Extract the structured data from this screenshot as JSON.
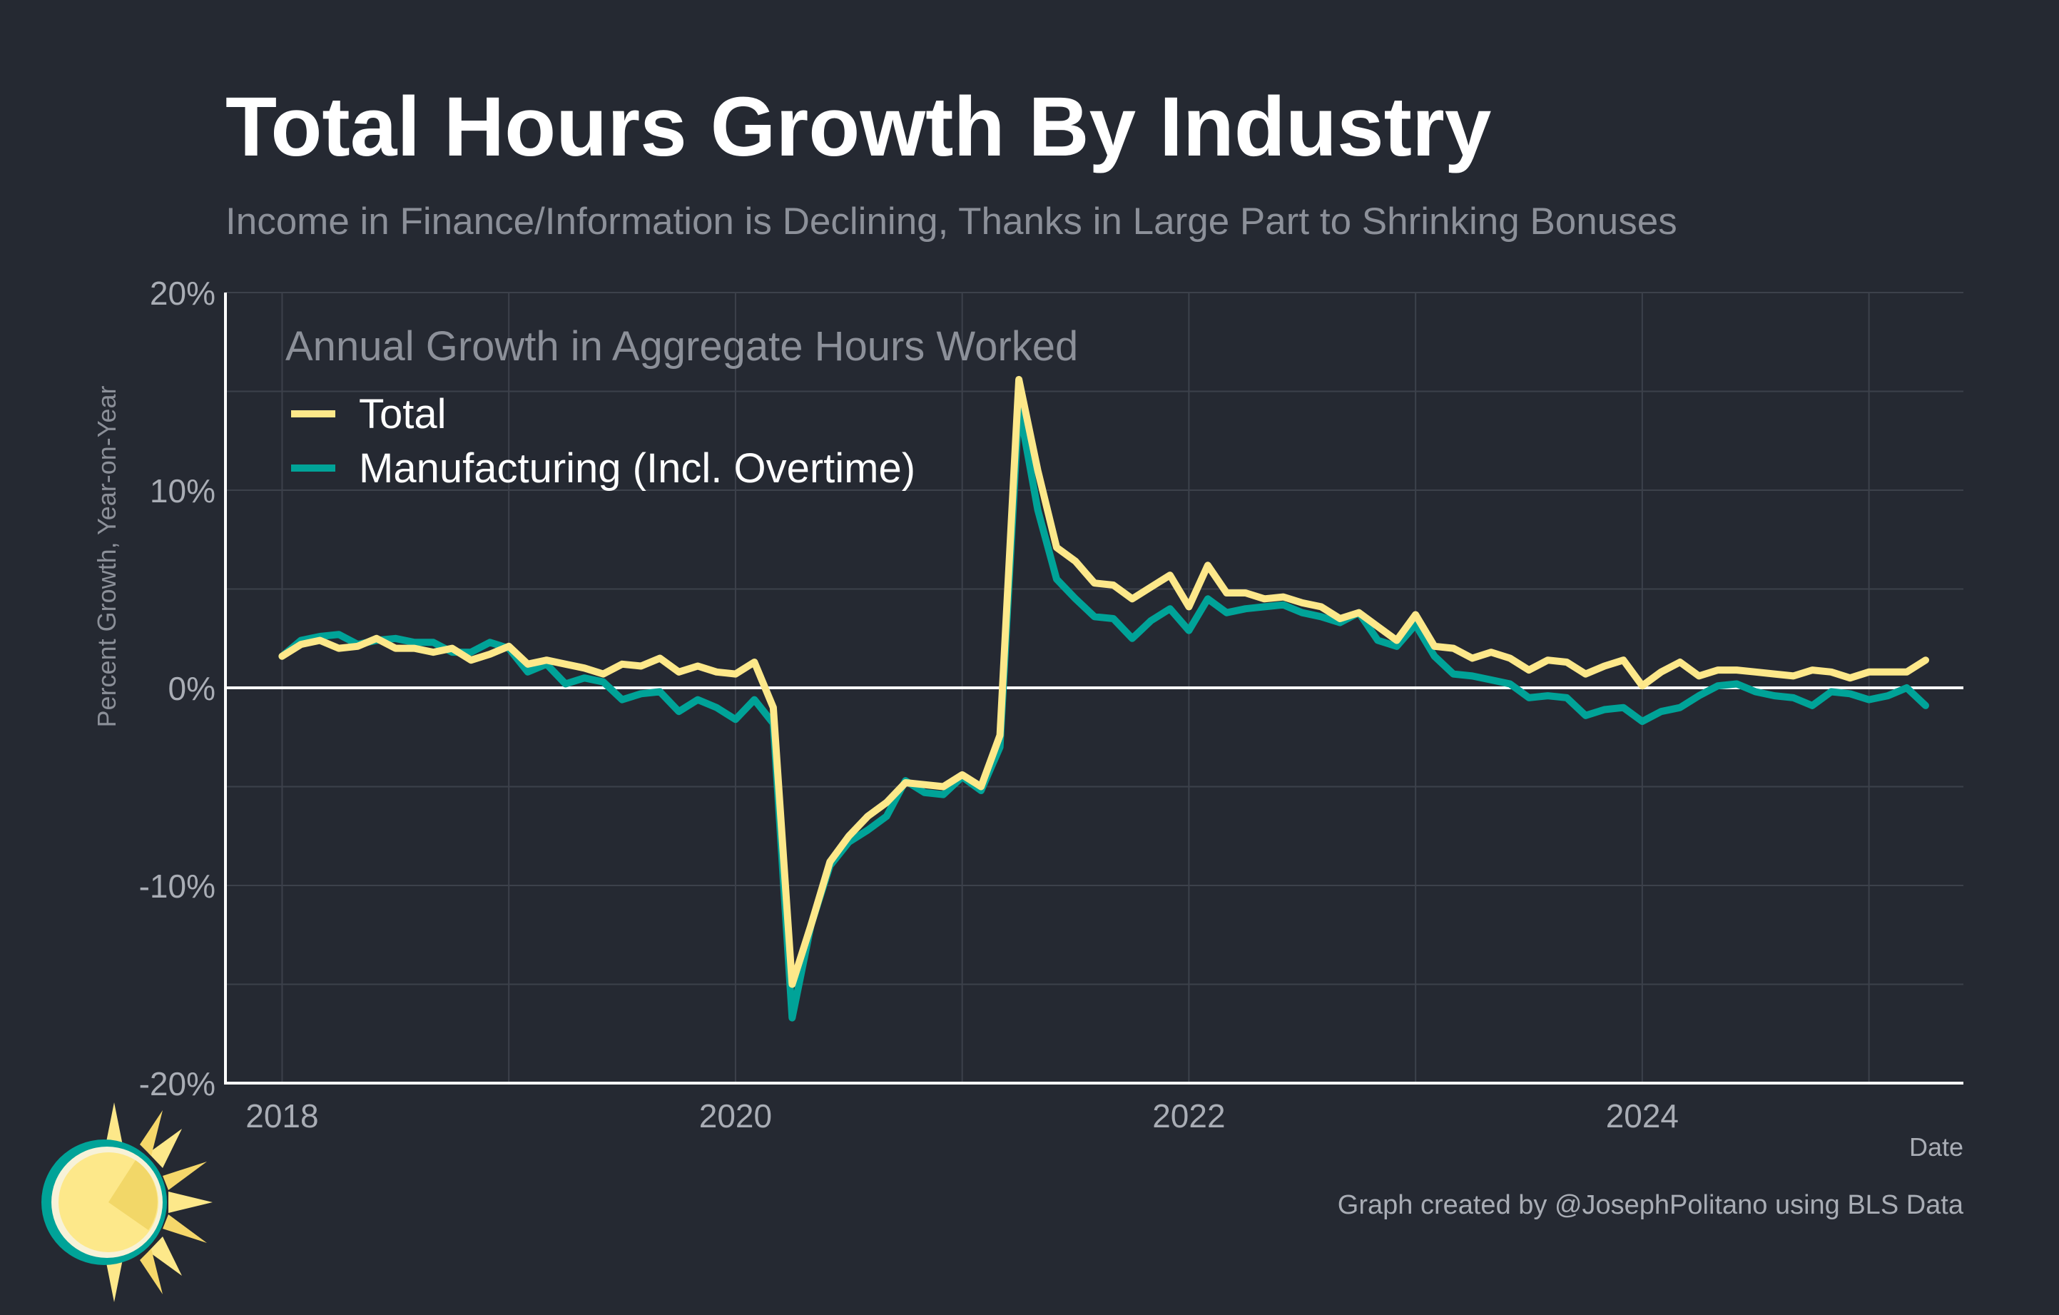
{
  "title": "Total Hours Growth By Industry",
  "subtitle": "Income in Finance/Information is Declining, Thanks in Large Part to Shrinking Bonuses",
  "caption": "Graph created by @JosephPolitano using BLS Data",
  "colors": {
    "background": "#252932",
    "title": "#ffffff",
    "muted_text": "#8c9099",
    "tick_text": "#a9adb5",
    "grid": "#3c414b",
    "zero_line": "#ffffff",
    "total": "#fde88a",
    "manufacturing": "#00a398"
  },
  "chart_data": {
    "type": "line",
    "title": "Total Hours Growth By Industry",
    "subtitle": "Income in Finance/Information is Declining, Thanks in Large Part to Shrinking Bonuses",
    "xlabel": "Date",
    "ylabel": "Percent Growth, Year-on-Year",
    "legend_title": "Annual Growth in Aggregate Hours Worked",
    "legend_position": "top-left",
    "grid": true,
    "ylim": [
      -20,
      20
    ],
    "y_ticks": [
      -20,
      -10,
      0,
      10,
      20
    ],
    "y_tick_labels": [
      "-20%",
      "-10%",
      "0%",
      "10%",
      "20%"
    ],
    "xlim": [
      "2017-10",
      "2025-06"
    ],
    "x_ticks": [
      "2018-01",
      "2020-01",
      "2022-01",
      "2024-01"
    ],
    "x_tick_labels": [
      "2018",
      "2020",
      "2022",
      "2024"
    ],
    "x": [
      "2018-01",
      "2018-02",
      "2018-03",
      "2018-04",
      "2018-05",
      "2018-06",
      "2018-07",
      "2018-08",
      "2018-09",
      "2018-10",
      "2018-11",
      "2018-12",
      "2019-01",
      "2019-02",
      "2019-03",
      "2019-04",
      "2019-05",
      "2019-06",
      "2019-07",
      "2019-08",
      "2019-09",
      "2019-10",
      "2019-11",
      "2019-12",
      "2020-01",
      "2020-02",
      "2020-03",
      "2020-04",
      "2020-05",
      "2020-06",
      "2020-07",
      "2020-08",
      "2020-09",
      "2020-10",
      "2020-11",
      "2020-12",
      "2021-01",
      "2021-02",
      "2021-03",
      "2021-04",
      "2021-05",
      "2021-06",
      "2021-07",
      "2021-08",
      "2021-09",
      "2021-10",
      "2021-11",
      "2021-12",
      "2022-01",
      "2022-02",
      "2022-03",
      "2022-04",
      "2022-05",
      "2022-06",
      "2022-07",
      "2022-08",
      "2022-09",
      "2022-10",
      "2022-11",
      "2022-12",
      "2023-01",
      "2023-02",
      "2023-03",
      "2023-04",
      "2023-05",
      "2023-06",
      "2023-07",
      "2023-08",
      "2023-09",
      "2023-10",
      "2023-11",
      "2023-12",
      "2024-01",
      "2024-02",
      "2024-03",
      "2024-04",
      "2024-05",
      "2024-06",
      "2024-07",
      "2024-08",
      "2024-09",
      "2024-10",
      "2024-11",
      "2024-12",
      "2025-01",
      "2025-02",
      "2025-03",
      "2025-04"
    ],
    "series": [
      {
        "name": "Total",
        "color": "#fde88a",
        "values": [
          1.6,
          2.2,
          2.4,
          2.0,
          2.1,
          2.5,
          2.0,
          2.0,
          1.8,
          2.0,
          1.4,
          1.7,
          2.1,
          1.2,
          1.4,
          1.2,
          1.0,
          0.7,
          1.2,
          1.1,
          1.5,
          0.8,
          1.1,
          0.8,
          0.7,
          1.3,
          -1.0,
          -15.0,
          -12.0,
          -8.8,
          -7.5,
          -6.5,
          -5.8,
          -4.8,
          -4.9,
          -5.0,
          -4.4,
          -5.0,
          -2.4,
          15.6,
          11.0,
          7.1,
          6.4,
          5.3,
          5.2,
          4.5,
          5.1,
          5.7,
          4.1,
          6.2,
          4.8,
          4.8,
          4.5,
          4.6,
          4.3,
          4.1,
          3.5,
          3.8,
          3.1,
          2.4,
          3.7,
          2.1,
          2.0,
          1.5,
          1.8,
          1.5,
          0.9,
          1.4,
          1.3,
          0.7,
          1.1,
          1.4,
          0.1,
          0.8,
          1.3,
          0.6,
          0.9,
          0.9,
          0.8,
          0.7,
          0.6,
          0.9,
          0.8,
          0.5,
          0.8,
          0.8,
          0.8,
          1.4
        ]
      },
      {
        "name": "Manufacturing (Incl. Overtime)",
        "color": "#00a398",
        "values": [
          1.6,
          2.4,
          2.6,
          2.7,
          2.2,
          2.4,
          2.5,
          2.3,
          2.3,
          1.8,
          1.8,
          2.3,
          2.0,
          0.8,
          1.2,
          0.2,
          0.5,
          0.3,
          -0.6,
          -0.3,
          -0.2,
          -1.2,
          -0.6,
          -1.0,
          -1.6,
          -0.6,
          -1.8,
          -16.7,
          -12.0,
          -9.0,
          -7.8,
          -7.2,
          -6.5,
          -4.7,
          -5.3,
          -5.4,
          -4.5,
          -5.2,
          -3.0,
          14.3,
          9.0,
          5.5,
          4.5,
          3.6,
          3.5,
          2.5,
          3.4,
          4.0,
          2.9,
          4.5,
          3.8,
          4.0,
          4.1,
          4.2,
          3.8,
          3.6,
          3.3,
          3.8,
          2.4,
          2.1,
          3.2,
          1.6,
          0.7,
          0.6,
          0.4,
          0.2,
          -0.5,
          -0.4,
          -0.5,
          -1.4,
          -1.1,
          -1.0,
          -1.7,
          -1.2,
          -1.0,
          -0.4,
          0.1,
          0.2,
          -0.2,
          -0.4,
          -0.5,
          -0.9,
          -0.2,
          -0.3,
          -0.6,
          -0.4,
          0.0,
          -0.9
        ]
      }
    ]
  },
  "logo": {
    "icon": "sun-logo-icon"
  }
}
